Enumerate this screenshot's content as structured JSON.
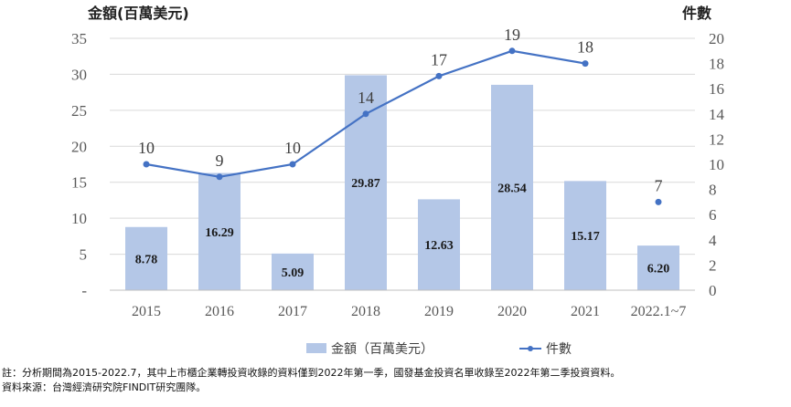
{
  "chart_data": {
    "type": "bar+line",
    "categories": [
      "2015",
      "2016",
      "2017",
      "2018",
      "2019",
      "2020",
      "2021",
      "2022.1~7"
    ],
    "series": [
      {
        "name": "金額（百萬美元）",
        "type": "bar",
        "axis": "left",
        "values": [
          8.78,
          16.29,
          5.09,
          29.87,
          12.63,
          28.54,
          15.17,
          6.2
        ],
        "labels": [
          "8.78",
          "16.29",
          "5.09",
          "29.87",
          "12.63",
          "28.54",
          "15.17",
          "6.20"
        ],
        "color": "#b4c7e7"
      },
      {
        "name": "件數",
        "type": "line",
        "axis": "right",
        "values": [
          10,
          9,
          10,
          14,
          17,
          19,
          18,
          7
        ],
        "labels": [
          "10",
          "9",
          "10",
          "14",
          "17",
          "19",
          "18",
          "7"
        ],
        "color": "#4472c4",
        "connect_last": false
      }
    ],
    "y_left": {
      "title": "金額(百萬美元)",
      "ylim": [
        0,
        35
      ],
      "ticks": [
        0,
        5,
        10,
        15,
        20,
        25,
        30,
        35
      ],
      "tick_labels": [
        "-",
        "5",
        "10",
        "15",
        "20",
        "25",
        "30",
        "35"
      ]
    },
    "y_right": {
      "title": "件數",
      "ylim": [
        0,
        20
      ],
      "ticks": [
        0,
        2,
        4,
        6,
        8,
        10,
        12,
        14,
        16,
        18,
        20
      ],
      "tick_labels": [
        "0",
        "2",
        "4",
        "6",
        "8",
        "10",
        "12",
        "14",
        "16",
        "18",
        "20"
      ]
    },
    "grid": true,
    "legend_position": "bottom"
  },
  "notes": [
    "註：分析期間為2015-2022.7，其中上市櫃企業轉投資收錄的資料僅到2022年第一季，國發基金投資名單收錄至2022年第二季投資資料。",
    "資料來源：台灣經濟研究院FINDIT研究團隊。"
  ]
}
